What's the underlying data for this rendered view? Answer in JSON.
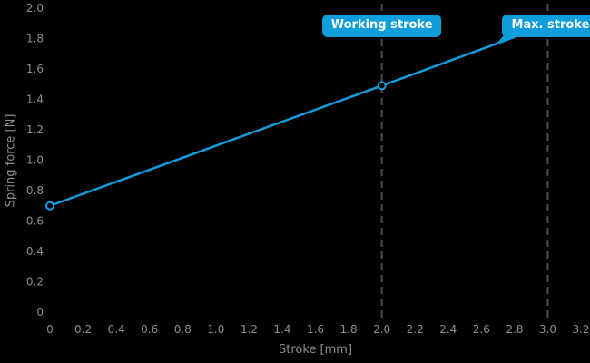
{
  "chart_data": {
    "type": "line",
    "xlabel": "Stroke [mm]",
    "ylabel": "Spring force [N]",
    "xlim": [
      0,
      3.2
    ],
    "ylim": [
      0,
      2.0
    ],
    "grid": false,
    "background_color": "#000000",
    "tick_label_color": "#8e8e8e",
    "accent_color": "#109ddb",
    "dashed_line_color": "#4d4d4d",
    "xtick_values": [
      0,
      0.2,
      0.4,
      0.6,
      0.8,
      1.0,
      1.2,
      1.4,
      1.6,
      1.8,
      2.0,
      2.2,
      2.4,
      2.6,
      2.8,
      3.0,
      3.2
    ],
    "xtick_labels": [
      "0",
      "0.2",
      "0.4",
      "0.6",
      "0.8",
      "1.0",
      "1.2",
      "1.4",
      "1.6",
      "1.8",
      "2.0",
      "2.2",
      "2.4",
      "2.6",
      "2.8",
      "3.0",
      "3.2"
    ],
    "ytick_values": [
      0,
      0.2,
      0.4,
      0.6,
      0.8,
      1.0,
      1.2,
      1.4,
      1.6,
      1.8,
      2.0
    ],
    "ytick_labels": [
      "0",
      "0.2",
      "0.4",
      "0.6",
      "0.8",
      "1.0",
      "1.2",
      "1.4",
      "1.6",
      "1.8",
      "2.0"
    ],
    "series": [
      {
        "color": "#109ddb",
        "points": [
          [
            0,
            0.7
          ],
          [
            2.0,
            1.49
          ],
          [
            2.8,
            1.81
          ]
        ],
        "marker_points": [
          [
            0,
            0.7
          ],
          [
            2.0,
            1.49
          ]
        ]
      }
    ],
    "annotations": [
      {
        "label": "Working stroke",
        "x": 2.0,
        "line_style": "dashed",
        "line_color": "#4d4d4d",
        "badge_color": "#109ddb",
        "badge_text_color": "#ffffff"
      },
      {
        "label": "Max. stroke",
        "x": 3.0,
        "line_style": "dashed",
        "line_color": "#4d4d4d",
        "badge_color": "#109ddb",
        "badge_text_color": "#ffffff",
        "pointer_to": [
          2.8,
          1.81
        ]
      }
    ]
  }
}
